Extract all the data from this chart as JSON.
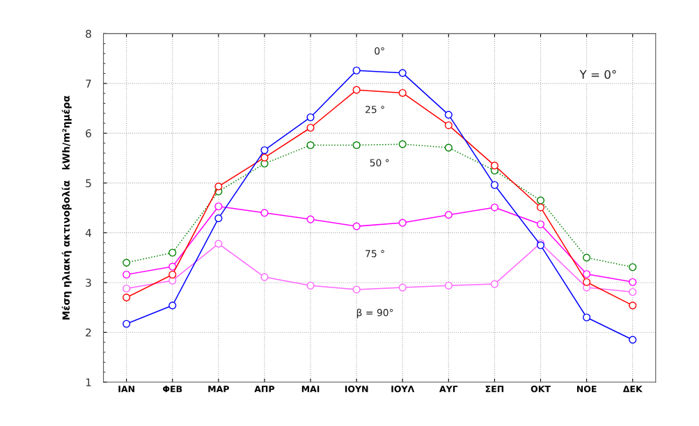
{
  "chart_data": {
    "type": "line",
    "ylabel": "Μέση ηλιακή ακτινοβολία   kWh/m²ημέρα",
    "categories": [
      "ΙΑΝ",
      "ΦΕΒ",
      "ΜΑΡ",
      "ΑΠΡ",
      "ΜΑΙ",
      "ΙΟΥΝ",
      "ΙΟΥΛ",
      "ΑΥΓ",
      "ΣΕΠ",
      "ΟΚΤ",
      "ΝΟΕ",
      "ΔΕΚ"
    ],
    "series": [
      {
        "name": "0°",
        "color": "#0000ff",
        "values": [
          2.17,
          2.54,
          4.29,
          5.66,
          6.32,
          7.26,
          7.21,
          6.37,
          4.96,
          3.75,
          2.3,
          1.85
        ]
      },
      {
        "name": "25 °",
        "color": "#ff0000",
        "values": [
          2.7,
          3.16,
          4.93,
          5.51,
          6.11,
          6.87,
          6.81,
          6.16,
          5.35,
          4.51,
          3.01,
          2.54
        ]
      },
      {
        "name": "50 °",
        "color": "#008000",
        "line_style": "dotted",
        "values": [
          3.4,
          3.6,
          4.83,
          5.39,
          5.76,
          5.76,
          5.78,
          5.71,
          5.25,
          4.65,
          3.5,
          3.31
        ]
      },
      {
        "name": "75 °",
        "color": "#ff00ff",
        "values": [
          3.16,
          3.32,
          4.53,
          4.4,
          4.27,
          4.13,
          4.2,
          4.36,
          4.51,
          4.17,
          3.17,
          3.01
        ]
      },
      {
        "name": "β = 90°",
        "color": "#ff66ff",
        "values": [
          2.88,
          3.04,
          3.78,
          3.11,
          2.94,
          2.86,
          2.9,
          2.94,
          2.97,
          3.79,
          2.9,
          2.81
        ]
      }
    ],
    "ylim": [
      1,
      8
    ],
    "yticks": [
      1,
      2,
      3,
      4,
      5,
      6,
      7,
      8
    ],
    "grid": true,
    "marker": "circle",
    "line_style": "solid",
    "legend": false,
    "annotations": [
      "Y = 0°"
    ]
  }
}
